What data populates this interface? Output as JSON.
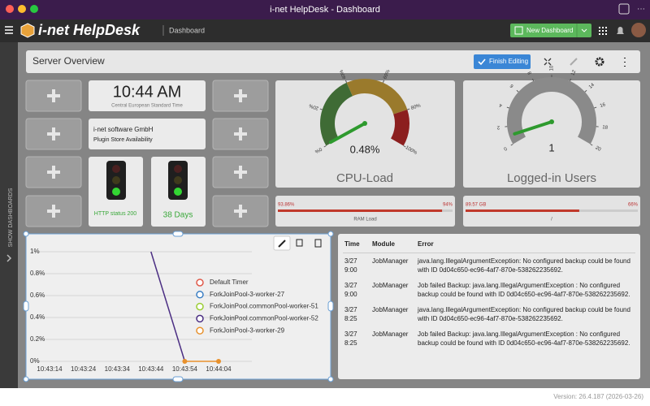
{
  "window": {
    "title": "i-net HelpDesk - Dashboard"
  },
  "app": {
    "name": "i-net HelpDesk",
    "section": "Dashboard",
    "new_dashboard": "New Dashboard"
  },
  "sidebar": {
    "label": "SHOW DASHBOARDS"
  },
  "dashboard": {
    "title": "Server Overview",
    "finish_editing": "Finish Editing"
  },
  "clock": {
    "time": "10:44 AM",
    "zone": "Central European Standard Time"
  },
  "plugin": {
    "company": "i-net software GmbH",
    "label": "Plugin Store Availability"
  },
  "status": {
    "http": "HTTP status 200",
    "uptime": "38 Days"
  },
  "gauges": [
    {
      "title": "CPU-Load",
      "value": 0.48,
      "value_label": "0.48%",
      "lim": [
        0,
        100
      ],
      "ticks": [
        {
          "value": 0,
          "label": "0%"
        },
        {
          "value": 20,
          "label": "20%"
        },
        {
          "value": 40,
          "label": "40%"
        },
        {
          "value": 60,
          "label": "60%"
        },
        {
          "value": 80,
          "label": "80%"
        },
        {
          "value": 100,
          "label": "100%"
        }
      ],
      "bands": [
        {
          "from": 0,
          "to": 40,
          "color": "#3f6b35"
        },
        {
          "from": 40,
          "to": 80,
          "color": "#9a7a2c"
        },
        {
          "from": 80,
          "to": 100,
          "color": "#8c1f1f"
        }
      ]
    },
    {
      "title": "Logged-in Users",
      "value": 1,
      "lim": [
        0,
        20
      ],
      "ticks": [
        0,
        2,
        4,
        6,
        8,
        10,
        12,
        14,
        16,
        18,
        20
      ],
      "bands": [
        {
          "from": 0,
          "to": 20,
          "color": "#8a8a8a"
        }
      ]
    }
  ],
  "bars": [
    {
      "value_label": "93.86%",
      "percent": 94,
      "percent_label": "94%",
      "label": "RAM Load"
    },
    {
      "value_label": "89.57 GB",
      "percent": 66,
      "percent_label": "66%",
      "label": "/"
    }
  ],
  "chart_data": {
    "type": "line",
    "x": [
      "10:43:14",
      "10:43:24",
      "10:43:34",
      "10:43:44",
      "10:43:54",
      "10:44:04"
    ],
    "series": [
      {
        "name": "Default Timer",
        "color": "#e05a4a",
        "values": [
          null,
          null,
          null,
          null,
          null,
          null
        ]
      },
      {
        "name": "ForkJoinPool-3-worker-27",
        "color": "#3b7fc4",
        "values": [
          null,
          null,
          null,
          null,
          null,
          null
        ]
      },
      {
        "name": "ForkJoinPool.commonPool-worker-51",
        "color": "#9acd32",
        "values": [
          null,
          null,
          null,
          null,
          null,
          null
        ]
      },
      {
        "name": "ForkJoinPool.commonPool-worker-52",
        "color": "#4b2e83",
        "values": [
          null,
          null,
          null,
          1,
          0,
          null
        ]
      },
      {
        "name": "ForkJoinPool-3-worker-29",
        "color": "#e8912d",
        "values": [
          null,
          null,
          null,
          null,
          0,
          0
        ]
      }
    ],
    "ylim": [
      0,
      1
    ],
    "yticks": [
      {
        "value": 0,
        "label": "0%"
      },
      {
        "value": 0.2,
        "label": "0.2%"
      },
      {
        "value": 0.4,
        "label": "0.4%"
      },
      {
        "value": 0.6,
        "label": "0.6%"
      },
      {
        "value": 0.8,
        "label": "0.8%"
      },
      {
        "value": 1,
        "label": "1%"
      }
    ],
    "grid": true
  },
  "table": {
    "header": [
      "Time",
      "Module",
      "Error"
    ],
    "rows": [
      [
        "3/27 9:00",
        "JobManager",
        "java.lang.IllegalArgumentException: No configured backup could be found with ID 0d04c650-ec96-4af7-870e-538262235692."
      ],
      [
        "3/27 9:00",
        "JobManager",
        "Job failed Backup: java.lang.IllegalArgumentException : No configured backup could be found with ID 0d04c650-ec96-4af7-870e-538262235692."
      ],
      [
        "3/27 8:25",
        "JobManager",
        "java.lang.IllegalArgumentException: No configured backup could be found with ID 0d04c650-ec96-4af7-870e-538262235692."
      ],
      [
        "3/27 8:25",
        "JobManager",
        "Job failed Backup: java.lang.IllegalArgumentException : No configured backup could be found with ID 0d04c650-ec96-4af7-870e-538262235692."
      ]
    ]
  },
  "footer": {
    "version": "Version: 26.4.187 (2026-03-26)"
  }
}
